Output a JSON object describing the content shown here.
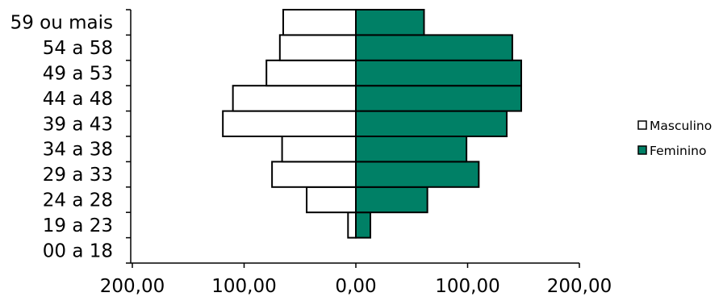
{
  "chart_data": {
    "type": "bar",
    "orientation": "horizontal",
    "layout": "population-pyramid",
    "categories": [
      "00 a 18",
      "19 a 23",
      "24 a 28",
      "29 a 33",
      "34 a 38",
      "39 a 43",
      "44 a 48",
      "49 a 53",
      "54 a 58",
      "59 ou mais"
    ],
    "series": [
      {
        "name": "Masculino",
        "color": "#ffffff",
        "side": "left",
        "values": [
          0,
          7,
          44,
          75,
          66,
          119,
          110,
          80,
          68,
          65
        ]
      },
      {
        "name": "Feminino",
        "color": "#008066",
        "side": "right",
        "values": [
          0,
          13,
          64,
          110,
          99,
          135,
          148,
          148,
          140,
          61
        ]
      }
    ],
    "x_ticks": [
      "200,00",
      "100,00",
      "0,00",
      "100,00",
      "200,00"
    ],
    "xlim": [
      -200,
      200
    ],
    "grid": false,
    "legend_position": "right"
  }
}
